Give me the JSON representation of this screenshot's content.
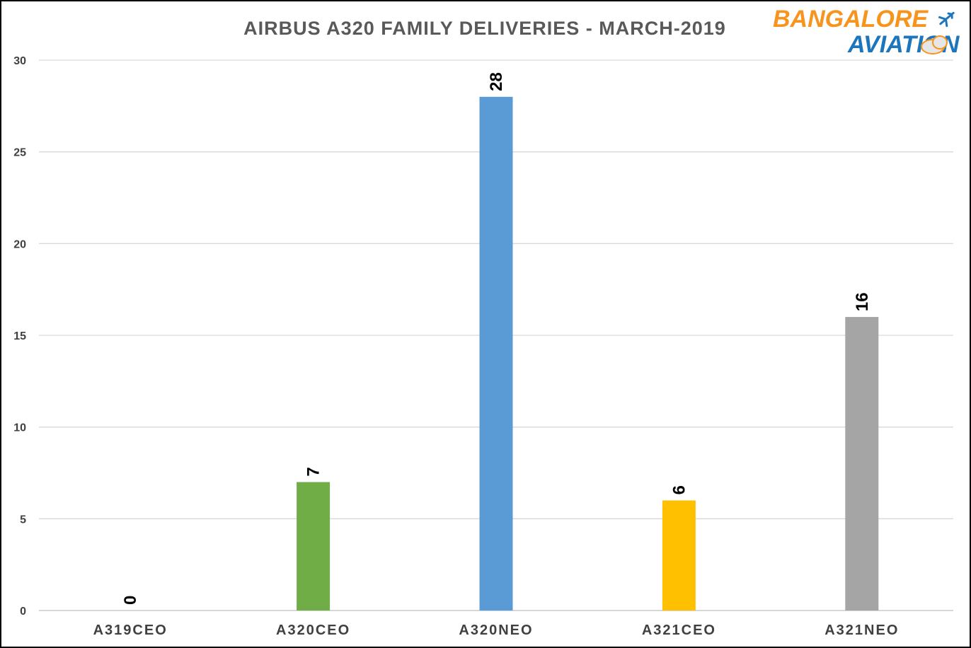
{
  "chart_data": {
    "type": "bar",
    "title": "AIRBUS  A320  FAMILY  DELIVERIES  - MARCH-2019",
    "categories": [
      "A319CEO",
      "A320CEO",
      "A320NEO",
      "A321CEO",
      "A321NEO"
    ],
    "values": [
      0,
      7,
      28,
      6,
      16
    ],
    "data_labels": [
      "0",
      "7",
      "28",
      "6",
      "16"
    ],
    "bar_colors": [
      "#a5a5a5",
      "#70ad47",
      "#5b9bd5",
      "#ffc000",
      "#a5a5a5"
    ],
    "ylim": [
      0,
      30
    ],
    "yticks": [
      "0",
      "5",
      "10",
      "15",
      "20",
      "25",
      "30"
    ],
    "xlabel": "",
    "ylabel": "",
    "grid": true,
    "legend": "none"
  },
  "logo": {
    "line1": "BANGALORE",
    "line2": "AVIATION",
    "colors": {
      "orange": "#f7941d",
      "blue": "#1d75bc"
    },
    "icon": "airplane-icon"
  }
}
